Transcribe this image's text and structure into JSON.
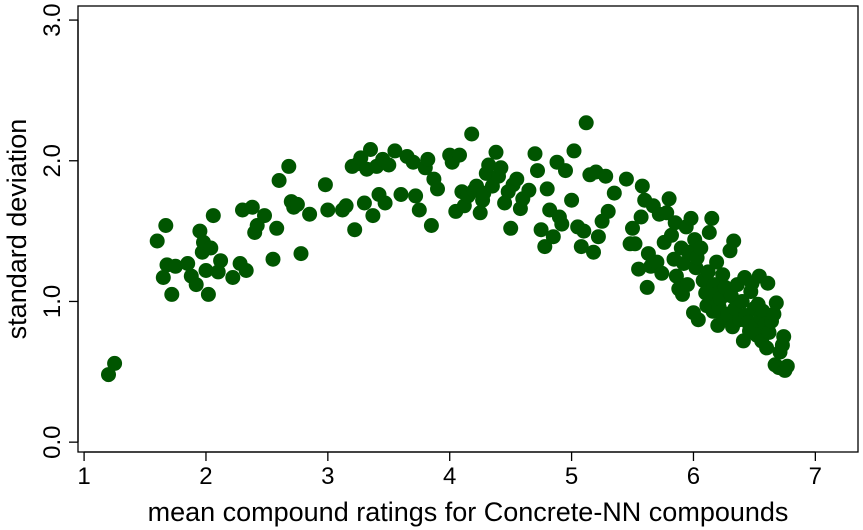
{
  "chart_data": {
    "type": "scatter",
    "title": "",
    "xlabel": "mean compound ratings for Concrete-NN compounds",
    "ylabel": "standard deviation",
    "xlim": [
      0.95,
      7.35
    ],
    "ylim": [
      -0.07,
      3.1
    ],
    "x_ticks": [
      1,
      2,
      3,
      4,
      5,
      6,
      7
    ],
    "y_ticks": [
      0.0,
      1.0,
      2.0,
      3.0
    ],
    "x_tick_labels": [
      "1",
      "2",
      "3",
      "4",
      "5",
      "6",
      "7"
    ],
    "y_tick_labels": [
      "0.0",
      "1.0",
      "2.0",
      "3.0"
    ],
    "grid": false,
    "legend": "none",
    "point_color": "#005500",
    "series": [
      {
        "points": [
          [
            1.2,
            0.48
          ],
          [
            1.25,
            0.56
          ],
          [
            1.6,
            1.43
          ],
          [
            1.65,
            1.17
          ],
          [
            1.67,
            1.54
          ],
          [
            1.68,
            1.26
          ],
          [
            1.72,
            1.05
          ],
          [
            1.75,
            1.25
          ],
          [
            1.85,
            1.27
          ],
          [
            1.88,
            1.18
          ],
          [
            1.92,
            1.12
          ],
          [
            1.95,
            1.5
          ],
          [
            1.97,
            1.35
          ],
          [
            1.98,
            1.42
          ],
          [
            2.0,
            1.22
          ],
          [
            2.02,
            1.05
          ],
          [
            2.04,
            1.38
          ],
          [
            2.06,
            1.61
          ],
          [
            2.1,
            1.21
          ],
          [
            2.12,
            1.29
          ],
          [
            2.22,
            1.17
          ],
          [
            2.28,
            1.27
          ],
          [
            2.3,
            1.65
          ],
          [
            2.33,
            1.22
          ],
          [
            2.38,
            1.67
          ],
          [
            2.4,
            1.49
          ],
          [
            2.42,
            1.54
          ],
          [
            2.48,
            1.61
          ],
          [
            2.55,
            1.3
          ],
          [
            2.58,
            1.52
          ],
          [
            2.6,
            1.86
          ],
          [
            2.68,
            1.96
          ],
          [
            2.7,
            1.71
          ],
          [
            2.72,
            1.67
          ],
          [
            2.75,
            1.69
          ],
          [
            2.78,
            1.34
          ],
          [
            2.85,
            1.62
          ],
          [
            2.98,
            1.83
          ],
          [
            3.0,
            1.65
          ],
          [
            3.12,
            1.65
          ],
          [
            3.15,
            1.68
          ],
          [
            3.2,
            1.96
          ],
          [
            3.22,
            1.51
          ],
          [
            3.25,
            1.98
          ],
          [
            3.27,
            2.02
          ],
          [
            3.3,
            1.7
          ],
          [
            3.32,
            1.94
          ],
          [
            3.35,
            2.08
          ],
          [
            3.37,
            1.61
          ],
          [
            3.4,
            1.96
          ],
          [
            3.42,
            1.76
          ],
          [
            3.45,
            2.01
          ],
          [
            3.47,
            1.7
          ],
          [
            3.5,
            1.97
          ],
          [
            3.55,
            2.07
          ],
          [
            3.6,
            1.76
          ],
          [
            3.65,
            2.03
          ],
          [
            3.7,
            1.99
          ],
          [
            3.72,
            1.75
          ],
          [
            3.75,
            1.65
          ],
          [
            3.8,
            1.95
          ],
          [
            3.82,
            2.01
          ],
          [
            3.85,
            1.54
          ],
          [
            3.87,
            1.87
          ],
          [
            3.9,
            1.8
          ],
          [
            4.0,
            2.04
          ],
          [
            4.02,
            1.99
          ],
          [
            4.05,
            1.64
          ],
          [
            4.08,
            2.04
          ],
          [
            4.1,
            1.78
          ],
          [
            4.12,
            1.68
          ],
          [
            4.15,
            1.75
          ],
          [
            4.18,
            2.19
          ],
          [
            4.2,
            1.79
          ],
          [
            4.22,
            1.82
          ],
          [
            4.25,
            1.63
          ],
          [
            4.27,
            1.72
          ],
          [
            4.28,
            1.77
          ],
          [
            4.3,
            1.91
          ],
          [
            4.32,
            1.97
          ],
          [
            4.35,
            1.82
          ],
          [
            4.38,
            2.06
          ],
          [
            4.4,
            1.89
          ],
          [
            4.42,
            1.95
          ],
          [
            4.45,
            1.7
          ],
          [
            4.48,
            1.78
          ],
          [
            4.5,
            1.52
          ],
          [
            4.52,
            1.83
          ],
          [
            4.55,
            1.87
          ],
          [
            4.58,
            1.66
          ],
          [
            4.6,
            1.73
          ],
          [
            4.65,
            1.79
          ],
          [
            4.7,
            2.05
          ],
          [
            4.72,
            1.93
          ],
          [
            4.75,
            1.51
          ],
          [
            4.78,
            1.39
          ],
          [
            4.8,
            1.8
          ],
          [
            4.82,
            1.65
          ],
          [
            4.85,
            1.46
          ],
          [
            4.88,
            1.99
          ],
          [
            4.9,
            1.6
          ],
          [
            4.92,
            1.55
          ],
          [
            4.95,
            1.93
          ],
          [
            5.0,
            1.72
          ],
          [
            5.02,
            2.07
          ],
          [
            5.05,
            1.53
          ],
          [
            5.08,
            1.39
          ],
          [
            5.1,
            1.5
          ],
          [
            5.12,
            2.27
          ],
          [
            5.15,
            1.9
          ],
          [
            5.18,
            1.35
          ],
          [
            5.2,
            1.92
          ],
          [
            5.22,
            1.46
          ],
          [
            5.25,
            1.57
          ],
          [
            5.28,
            1.89
          ],
          [
            5.3,
            1.64
          ],
          [
            5.35,
            1.77
          ],
          [
            5.45,
            1.87
          ],
          [
            5.48,
            1.41
          ],
          [
            5.5,
            1.52
          ],
          [
            5.52,
            1.41
          ],
          [
            5.55,
            1.23
          ],
          [
            5.57,
            1.6
          ],
          [
            5.58,
            1.82
          ],
          [
            5.6,
            1.72
          ],
          [
            5.62,
            1.1
          ],
          [
            5.63,
            1.34
          ],
          [
            5.65,
            1.25
          ],
          [
            5.67,
            1.68
          ],
          [
            5.7,
            1.28
          ],
          [
            5.72,
            1.62
          ],
          [
            5.74,
            1.2
          ],
          [
            5.76,
            1.42
          ],
          [
            5.78,
            1.63
          ],
          [
            5.8,
            1.73
          ],
          [
            5.82,
            1.47
          ],
          [
            5.84,
            1.3
          ],
          [
            5.85,
            1.56
          ],
          [
            5.86,
            1.18
          ],
          [
            5.88,
            1.09
          ],
          [
            5.9,
            1.38
          ],
          [
            5.91,
            1.05
          ],
          [
            5.92,
            1.27
          ],
          [
            5.94,
            1.53
          ],
          [
            5.95,
            1.12
          ],
          [
            5.96,
            1.35
          ],
          [
            5.98,
            1.59
          ],
          [
            6.0,
            0.92
          ],
          [
            6.01,
            1.44
          ],
          [
            6.02,
            1.24
          ],
          [
            6.03,
            1.31
          ],
          [
            6.04,
            0.87
          ],
          [
            6.06,
            1.38
          ],
          [
            6.08,
            1.15
          ],
          [
            6.1,
            1.06
          ],
          [
            6.11,
            0.97
          ],
          [
            6.12,
            1.21
          ],
          [
            6.13,
            1.49
          ],
          [
            6.14,
            0.99
          ],
          [
            6.15,
            1.59
          ],
          [
            6.16,
            0.93
          ],
          [
            6.17,
            1.12
          ],
          [
            6.18,
            1.05
          ],
          [
            6.19,
            1.28
          ],
          [
            6.2,
            0.83
          ],
          [
            6.21,
            0.96
          ],
          [
            6.22,
            1.02
          ],
          [
            6.24,
            1.19
          ],
          [
            6.25,
            0.88
          ],
          [
            6.26,
            1.1
          ],
          [
            6.28,
            0.91
          ],
          [
            6.3,
            1.36
          ],
          [
            6.31,
            1.04
          ],
          [
            6.32,
            0.82
          ],
          [
            6.33,
            1.43
          ],
          [
            6.34,
            0.95
          ],
          [
            6.36,
            1.12
          ],
          [
            6.38,
            0.87
          ],
          [
            6.4,
            1.0
          ],
          [
            6.41,
            0.72
          ],
          [
            6.42,
            1.17
          ],
          [
            6.43,
            0.9
          ],
          [
            6.45,
            0.85
          ],
          [
            6.46,
            0.79
          ],
          [
            6.47,
            1.07
          ],
          [
            6.48,
            1.13
          ],
          [
            6.5,
            0.95
          ],
          [
            6.51,
            0.83
          ],
          [
            6.52,
            0.76
          ],
          [
            6.53,
            0.98
          ],
          [
            6.54,
            1.18
          ],
          [
            6.55,
            0.89
          ],
          [
            6.56,
            0.72
          ],
          [
            6.57,
            0.93
          ],
          [
            6.59,
            0.84
          ],
          [
            6.6,
            0.67
          ],
          [
            6.61,
            1.13
          ],
          [
            6.62,
            0.78
          ],
          [
            6.64,
            0.86
          ],
          [
            6.66,
            0.91
          ],
          [
            6.67,
            0.55
          ],
          [
            6.68,
            0.99
          ],
          [
            6.7,
            0.53
          ],
          [
            6.71,
            0.64
          ],
          [
            6.73,
            0.69
          ],
          [
            6.74,
            0.75
          ],
          [
            6.75,
            0.51
          ],
          [
            6.77,
            0.54
          ]
        ]
      }
    ]
  }
}
